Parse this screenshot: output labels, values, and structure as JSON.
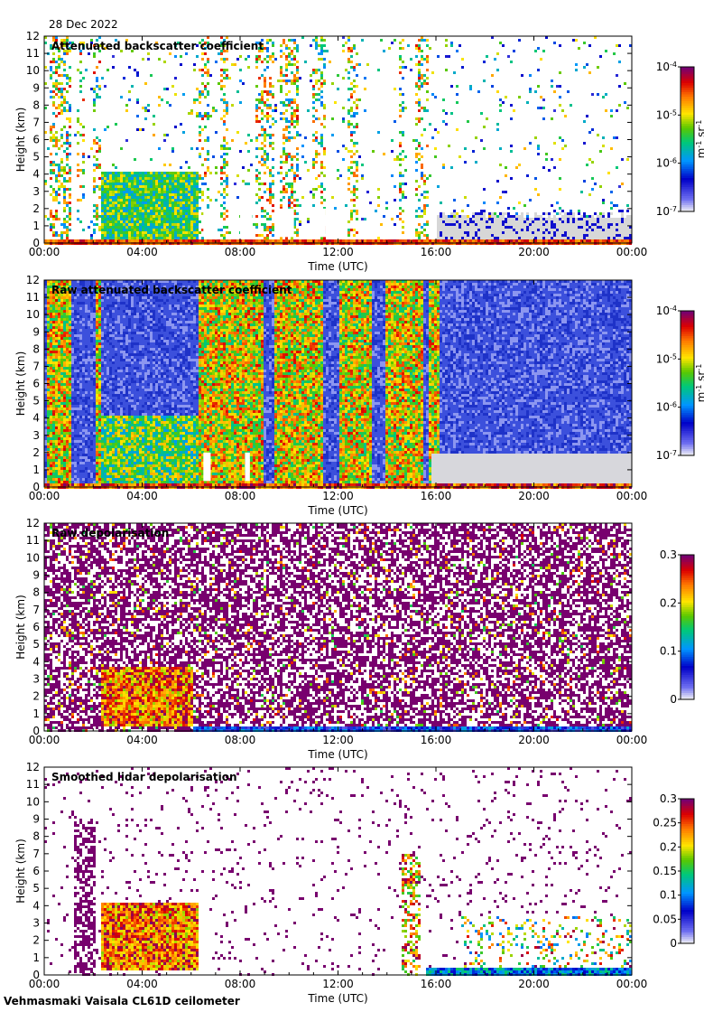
{
  "header": {
    "date": "28 Dec 2022"
  },
  "footer": {
    "instrument": "Vehmasmaki Vaisala CL61D ceilometer"
  },
  "chart_data": [
    {
      "type": "heatmap",
      "title": "Attenuated backscatter coefficient",
      "xlabel": "Time (UTC)",
      "ylabel": "Height (km)",
      "x_ticks": [
        "00:00",
        "04:00",
        "08:00",
        "12:00",
        "16:00",
        "20:00",
        "00:00"
      ],
      "y_ticks": [
        "0",
        "1",
        "2",
        "3",
        "4",
        "5",
        "6",
        "7",
        "8",
        "9",
        "10",
        "11",
        "12"
      ],
      "ylim": [
        0,
        12
      ],
      "colorbar": {
        "scale": "log",
        "range": [
          1e-07,
          0.0001
        ],
        "ticks": [
          {
            "base": "10",
            "exp": "-7"
          },
          {
            "base": "10",
            "exp": "-6"
          },
          {
            "base": "10",
            "exp": "-5"
          },
          {
            "base": "10",
            "exp": "-4"
          }
        ],
        "units": {
          "base": "m",
          "exp1": "-1",
          "mid": " sr",
          "exp2": "-1"
        }
      }
    },
    {
      "type": "heatmap",
      "title": "Raw attenuated backscatter coefficient",
      "xlabel": "Time (UTC)",
      "ylabel": "Height (km)",
      "x_ticks": [
        "00:00",
        "04:00",
        "08:00",
        "12:00",
        "16:00",
        "20:00",
        "00:00"
      ],
      "y_ticks": [
        "0",
        "1",
        "2",
        "3",
        "4",
        "5",
        "6",
        "7",
        "8",
        "9",
        "10",
        "11",
        "12"
      ],
      "ylim": [
        0,
        12
      ],
      "colorbar": {
        "scale": "log",
        "range": [
          1e-07,
          0.0001
        ],
        "ticks": [
          {
            "base": "10",
            "exp": "-7"
          },
          {
            "base": "10",
            "exp": "-6"
          },
          {
            "base": "10",
            "exp": "-5"
          },
          {
            "base": "10",
            "exp": "-4"
          }
        ],
        "units": {
          "base": "m",
          "exp1": "-1",
          "mid": " sr",
          "exp2": "-1"
        }
      }
    },
    {
      "type": "heatmap",
      "title": "Raw depolarisation",
      "xlabel": "Time (UTC)",
      "ylabel": "Height (km)",
      "x_ticks": [
        "00:00",
        "04:00",
        "08:00",
        "12:00",
        "16:00",
        "20:00",
        "00:00"
      ],
      "y_ticks": [
        "0",
        "1",
        "2",
        "3",
        "4",
        "5",
        "6",
        "7",
        "8",
        "9",
        "10",
        "11",
        "12"
      ],
      "ylim": [
        0,
        12
      ],
      "colorbar": {
        "scale": "linear",
        "range": [
          0,
          0.3
        ],
        "ticks": [
          "0",
          "0.1",
          "0.2",
          "0.3"
        ]
      }
    },
    {
      "type": "heatmap",
      "title": "Smoothed lidar depolarisation",
      "xlabel": "Time (UTC)",
      "ylabel": "Height (km)",
      "x_ticks": [
        "00:00",
        "04:00",
        "08:00",
        "12:00",
        "16:00",
        "20:00",
        "00:00"
      ],
      "y_ticks": [
        "0",
        "1",
        "2",
        "3",
        "4",
        "5",
        "6",
        "7",
        "8",
        "9",
        "10",
        "11",
        "12"
      ],
      "ylim": [
        0,
        12
      ],
      "colorbar": {
        "scale": "linear",
        "range": [
          0,
          0.3
        ],
        "ticks": [
          "0",
          "0.05",
          "0.1",
          "0.15",
          "0.2",
          "0.25",
          "0.3"
        ]
      }
    }
  ]
}
